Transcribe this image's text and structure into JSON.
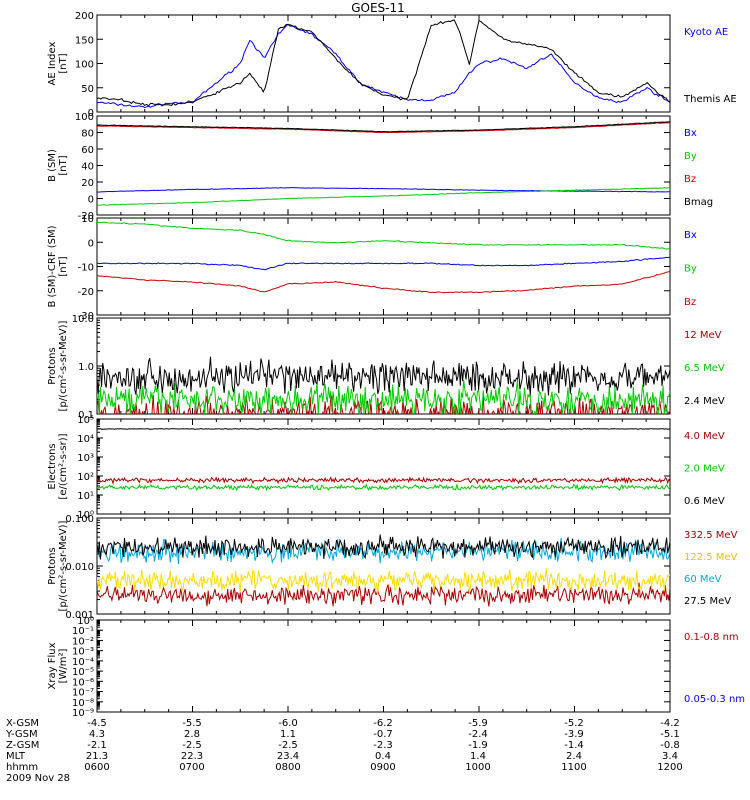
{
  "title": "GOES-11",
  "footer": {
    "rows": [
      {
        "label": "X-GSM",
        "values": [
          "-4.5",
          "-5.5",
          "-6.0",
          "-6.2",
          "-5.9",
          "-5.2",
          "-4.2"
        ]
      },
      {
        "label": "Y-GSM",
        "values": [
          "4.3",
          "2.8",
          "1.1",
          "-0.7",
          "-2.4",
          "-3.9",
          "-5.1"
        ]
      },
      {
        "label": "Z-GSM",
        "values": [
          "-2.1",
          "-2.5",
          "-2.5",
          "-2.3",
          "-1.9",
          "-1.4",
          "-0.8"
        ]
      },
      {
        "label": "MLT",
        "values": [
          "21.3",
          "22.3",
          "23.4",
          "0.4",
          "1.4",
          "2.4",
          "3.4"
        ]
      },
      {
        "label": "hhmm",
        "values": [
          "0600",
          "0700",
          "0800",
          "0900",
          "1000",
          "1100",
          "1200"
        ]
      }
    ],
    "date": "2009 Nov 28"
  },
  "chart_data": [
    {
      "type": "line",
      "ylabel": [
        "AE Index",
        "[nT]"
      ],
      "ylim": [
        0,
        200
      ],
      "yticks": [
        "0",
        "50",
        "100",
        "150",
        "200"
      ],
      "x": [
        6.0,
        6.25,
        6.5,
        6.75,
        7.0,
        7.25,
        7.5,
        7.6,
        7.75,
        7.9,
        8.0,
        8.25,
        8.5,
        8.75,
        9.0,
        9.25,
        9.5,
        9.75,
        9.9,
        10.0,
        10.25,
        10.5,
        10.75,
        11.0,
        11.25,
        11.5,
        11.75,
        12.0
      ],
      "series": [
        {
          "name": "Kyoto AE",
          "color": "#0000ff",
          "values": [
            20,
            15,
            10,
            18,
            20,
            60,
            100,
            150,
            110,
            160,
            180,
            160,
            120,
            60,
            40,
            25,
            25,
            40,
            80,
            100,
            110,
            90,
            120,
            60,
            30,
            20,
            50,
            20
          ]
        },
        {
          "name": "Themis AE",
          "color": "#000000",
          "values": [
            30,
            25,
            15,
            15,
            20,
            40,
            60,
            80,
            40,
            170,
            180,
            165,
            110,
            60,
            35,
            25,
            180,
            190,
            100,
            190,
            150,
            140,
            130,
            80,
            40,
            30,
            60,
            20
          ]
        }
      ]
    },
    {
      "type": "line",
      "ylabel": [
        "B (SM)",
        "[nT]"
      ],
      "ylim": [
        -20,
        100
      ],
      "yticks": [
        "-20",
        "0",
        "20",
        "40",
        "60",
        "80",
        "100"
      ],
      "x": [
        6.0,
        7.0,
        8.0,
        9.0,
        10.0,
        11.0,
        12.0
      ],
      "series": [
        {
          "name": "Bx",
          "color": "#0000ff",
          "values": [
            8,
            11,
            13,
            12,
            10,
            9,
            8
          ]
        },
        {
          "name": "By",
          "color": "#00cc00",
          "values": [
            -8,
            -5,
            0,
            3,
            7,
            10,
            13
          ]
        },
        {
          "name": "Bz",
          "color": "#cc0000",
          "values": [
            88,
            86,
            84,
            80,
            82,
            86,
            92
          ]
        },
        {
          "name": "Bmag",
          "color": "#000000",
          "values": [
            89,
            87,
            85,
            81,
            83,
            87,
            93
          ]
        }
      ]
    },
    {
      "type": "line",
      "ylabel": [
        "B (SM)-CRF (SM)",
        "[nT]"
      ],
      "ylim": [
        -35,
        12
      ],
      "yticks": [
        "-30",
        "-20",
        "-10",
        "0",
        "10"
      ],
      "x": [
        6.0,
        6.5,
        7.0,
        7.5,
        7.75,
        8.0,
        8.5,
        9.0,
        9.5,
        10.0,
        10.5,
        11.0,
        11.5,
        12.0
      ],
      "series": [
        {
          "name": "Bx",
          "color": "#0000ff",
          "values": [
            -10,
            -10,
            -10,
            -11,
            -13,
            -10,
            -10,
            -10,
            -10,
            -11,
            -11,
            -10,
            -9,
            -7
          ]
        },
        {
          "name": "By",
          "color": "#00cc00",
          "values": [
            10,
            9,
            7,
            6,
            4,
            1,
            0,
            1,
            0,
            -1,
            -1,
            -1,
            -1,
            -3
          ]
        },
        {
          "name": "Bz",
          "color": "#cc0000",
          "values": [
            -16,
            -18,
            -19,
            -21,
            -24,
            -20,
            -19,
            -22,
            -24,
            -24,
            -23,
            -21,
            -20,
            -14
          ]
        }
      ]
    },
    {
      "type": "line",
      "ylabel": [
        "Protons",
        "[p/(cm²-s-sr-MeV)]"
      ],
      "yscale": "log",
      "ylim": [
        0.1,
        10.0
      ],
      "yticks": [
        "0.1",
        "1.0",
        "10.0"
      ],
      "series": [
        {
          "name": "12 MeV",
          "color": "#aa0000",
          "level": 0.1
        },
        {
          "name": "6.5 MeV",
          "color": "#00cc00",
          "level": 0.2
        },
        {
          "name": "2.4 MeV",
          "color": "#000000",
          "level": 0.6
        }
      ]
    },
    {
      "type": "line",
      "ylabel": [
        "Electrons",
        "[e/(cm²-s-sr)]"
      ],
      "yscale": "log",
      "ylim": [
        1,
        100000
      ],
      "yticks": [
        "10⁰",
        "10¹",
        "10²",
        "10³",
        "10⁴",
        "10⁵"
      ],
      "series": [
        {
          "name": "4.0 MeV",
          "color": "#aa0000",
          "level": 60
        },
        {
          "name": "2.0 MeV",
          "color": "#00cc00",
          "level": 25
        },
        {
          "name": "0.6 MeV",
          "color": "#000000",
          "level": 30000
        }
      ]
    },
    {
      "type": "line",
      "ylabel": [
        "Protons",
        "[p/(cm²-s-sr-MeV)]"
      ],
      "yscale": "log",
      "ylim": [
        0.001,
        0.1
      ],
      "yticks": [
        "0.001",
        "0.010",
        "0.100"
      ],
      "series": [
        {
          "name": "332.5 MeV",
          "color": "#aa0000",
          "level": 0.0025
        },
        {
          "name": "122.5 MeV",
          "color": "#ffdd00",
          "level": 0.005
        },
        {
          "name": "60 MeV",
          "color": "#00aadd",
          "level": 0.02
        },
        {
          "name": "27.5 MeV",
          "color": "#000000",
          "level": 0.025
        }
      ]
    },
    {
      "type": "line",
      "ylabel": [
        "Xray Flux",
        "[W/m²]"
      ],
      "yscale": "log",
      "ylim": [
        1e-09,
        1
      ],
      "yticks": [
        "10⁻⁹",
        "10⁻⁸",
        "10⁻⁷",
        "10⁻⁶",
        "10⁻⁵",
        "10⁻⁴",
        "10⁻³",
        "10⁻²",
        "10⁻¹",
        "10⁰"
      ],
      "series": [
        {
          "name": "0.1-0.8 nm",
          "color": "#aa0000",
          "values": []
        },
        {
          "name": "0.05-0.3 nm",
          "color": "#0000ff",
          "values": []
        }
      ]
    }
  ]
}
